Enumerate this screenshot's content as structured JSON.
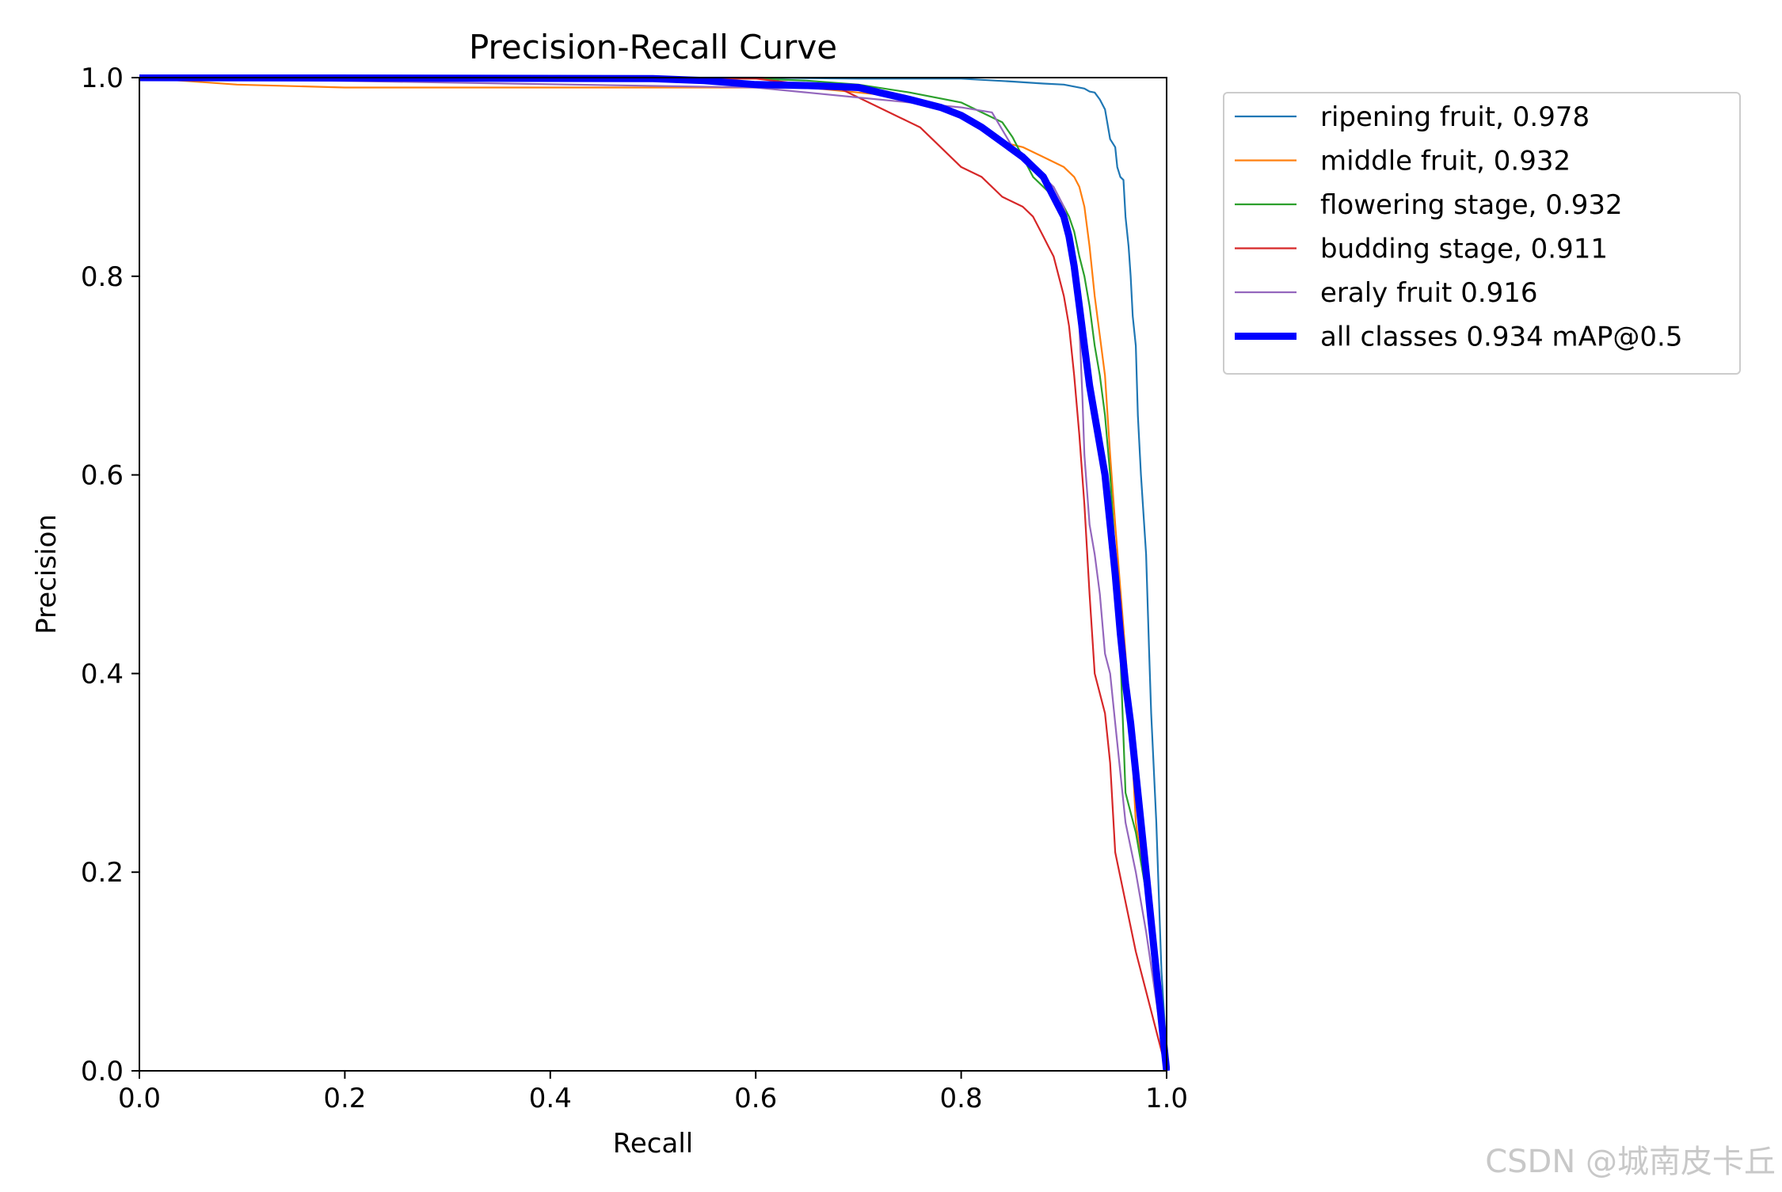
{
  "chart_data": {
    "type": "line",
    "title": "Precision-Recall Curve",
    "xlabel": "Recall",
    "ylabel": "Precision",
    "xlim": [
      0,
      1
    ],
    "ylim": [
      0,
      1
    ],
    "xticks": [
      "0.0",
      "0.2",
      "0.4",
      "0.6",
      "0.8",
      "1.0"
    ],
    "yticks": [
      "0.0",
      "0.2",
      "0.4",
      "0.6",
      "0.8",
      "1.0"
    ],
    "grid": false,
    "legend_position": "outside-top-right",
    "series": [
      {
        "name": "ripening fruit, 0.978",
        "color": "#1f77b4",
        "width": "thin",
        "x": [
          0,
          0.6,
          0.7,
          0.8,
          0.85,
          0.88,
          0.9,
          0.91,
          0.92,
          0.925,
          0.93,
          0.935,
          0.94,
          0.945,
          0.95,
          0.952,
          0.955,
          0.958,
          0.96,
          0.963,
          0.965,
          0.967,
          0.97,
          0.972,
          0.975,
          0.98,
          0.983,
          0.985,
          0.99,
          0.993,
          0.995,
          0.998,
          1.0
        ],
        "y": [
          1.0,
          1.0,
          0.999,
          0.999,
          0.996,
          0.994,
          0.993,
          0.991,
          0.989,
          0.986,
          0.985,
          0.978,
          0.968,
          0.938,
          0.93,
          0.91,
          0.9,
          0.897,
          0.86,
          0.83,
          0.8,
          0.76,
          0.73,
          0.66,
          0.6,
          0.52,
          0.42,
          0.36,
          0.25,
          0.16,
          0.1,
          0.05,
          0.0
        ]
      },
      {
        "name": "middle fruit, 0.932",
        "color": "#ff7f0e",
        "width": "thin",
        "x": [
          0,
          0.095,
          0.2,
          0.3,
          0.5,
          0.6,
          0.65,
          0.7,
          0.75,
          0.8,
          0.82,
          0.84,
          0.86,
          0.88,
          0.9,
          0.91,
          0.915,
          0.92,
          0.925,
          0.93,
          0.935,
          0.94,
          0.945,
          0.95,
          0.96,
          0.965,
          0.97,
          0.98,
          0.99,
          1.0
        ],
        "y": [
          1.0,
          0.993,
          0.99,
          0.99,
          0.99,
          0.99,
          0.99,
          0.985,
          0.98,
          0.96,
          0.95,
          0.935,
          0.93,
          0.92,
          0.91,
          0.9,
          0.89,
          0.87,
          0.83,
          0.78,
          0.74,
          0.7,
          0.62,
          0.55,
          0.42,
          0.35,
          0.25,
          0.18,
          0.1,
          0.0
        ]
      },
      {
        "name": "flowering stage, 0.932",
        "color": "#2ca02c",
        "width": "thin",
        "x": [
          0,
          0.6,
          0.65,
          0.7,
          0.75,
          0.8,
          0.82,
          0.84,
          0.85,
          0.86,
          0.87,
          0.88,
          0.89,
          0.9,
          0.905,
          0.91,
          0.915,
          0.92,
          0.925,
          0.93,
          0.935,
          0.94,
          0.945,
          0.95,
          0.955,
          0.96,
          0.965,
          0.97,
          0.98,
          0.99,
          1.0
        ],
        "y": [
          1.0,
          0.999,
          0.997,
          0.993,
          0.985,
          0.975,
          0.965,
          0.955,
          0.94,
          0.92,
          0.9,
          0.89,
          0.88,
          0.87,
          0.86,
          0.845,
          0.82,
          0.8,
          0.77,
          0.73,
          0.7,
          0.66,
          0.6,
          0.52,
          0.42,
          0.28,
          0.26,
          0.24,
          0.18,
          0.1,
          0.0
        ]
      },
      {
        "name": "budding stage, 0.911",
        "color": "#d62728",
        "width": "thin",
        "x": [
          0,
          0.6,
          0.65,
          0.68,
          0.7,
          0.72,
          0.74,
          0.76,
          0.78,
          0.8,
          0.82,
          0.84,
          0.86,
          0.87,
          0.88,
          0.885,
          0.89,
          0.895,
          0.9,
          0.905,
          0.91,
          0.915,
          0.92,
          0.925,
          0.93,
          0.935,
          0.94,
          0.945,
          0.95,
          0.96,
          0.97,
          0.98,
          0.99,
          1.0
        ],
        "y": [
          1.0,
          0.999,
          0.993,
          0.99,
          0.98,
          0.97,
          0.96,
          0.95,
          0.93,
          0.91,
          0.9,
          0.88,
          0.87,
          0.86,
          0.84,
          0.83,
          0.82,
          0.8,
          0.78,
          0.75,
          0.7,
          0.64,
          0.57,
          0.48,
          0.4,
          0.38,
          0.36,
          0.31,
          0.22,
          0.17,
          0.12,
          0.08,
          0.04,
          0.0
        ]
      },
      {
        "name": "eraly fruit 0.916",
        "color": "#9467bd",
        "width": "thin",
        "x": [
          0,
          0.6,
          0.65,
          0.7,
          0.75,
          0.8,
          0.83,
          0.85,
          0.86,
          0.87,
          0.88,
          0.89,
          0.9,
          0.905,
          0.91,
          0.912,
          0.915,
          0.918,
          0.92,
          0.925,
          0.93,
          0.935,
          0.94,
          0.945,
          0.95,
          0.955,
          0.96,
          0.97,
          0.98,
          0.99,
          1.0
        ],
        "y": [
          1.0,
          0.99,
          0.985,
          0.98,
          0.975,
          0.97,
          0.965,
          0.93,
          0.92,
          0.91,
          0.9,
          0.89,
          0.87,
          0.85,
          0.82,
          0.8,
          0.75,
          0.68,
          0.62,
          0.55,
          0.52,
          0.48,
          0.42,
          0.4,
          0.35,
          0.3,
          0.25,
          0.2,
          0.14,
          0.07,
          0.0
        ]
      },
      {
        "name": "all classes 0.934 mAP@0.5",
        "color": "#0000ff",
        "width": "thick",
        "x": [
          0,
          0.5,
          0.55,
          0.6,
          0.65,
          0.7,
          0.72,
          0.75,
          0.78,
          0.8,
          0.82,
          0.84,
          0.86,
          0.87,
          0.88,
          0.89,
          0.9,
          0.905,
          0.91,
          0.915,
          0.92,
          0.925,
          0.93,
          0.935,
          0.94,
          0.945,
          0.95,
          0.955,
          0.96,
          0.965,
          0.97,
          0.975,
          0.98,
          0.985,
          0.99,
          0.995,
          1.0
        ],
        "y": [
          1.0,
          0.999,
          0.997,
          0.993,
          0.992,
          0.99,
          0.985,
          0.978,
          0.97,
          0.962,
          0.95,
          0.935,
          0.92,
          0.91,
          0.9,
          0.88,
          0.86,
          0.84,
          0.81,
          0.77,
          0.73,
          0.69,
          0.66,
          0.63,
          0.6,
          0.55,
          0.5,
          0.44,
          0.39,
          0.35,
          0.3,
          0.25,
          0.2,
          0.15,
          0.1,
          0.05,
          0.0
        ]
      }
    ]
  },
  "watermark": "CSDN @城南皮卡丘"
}
